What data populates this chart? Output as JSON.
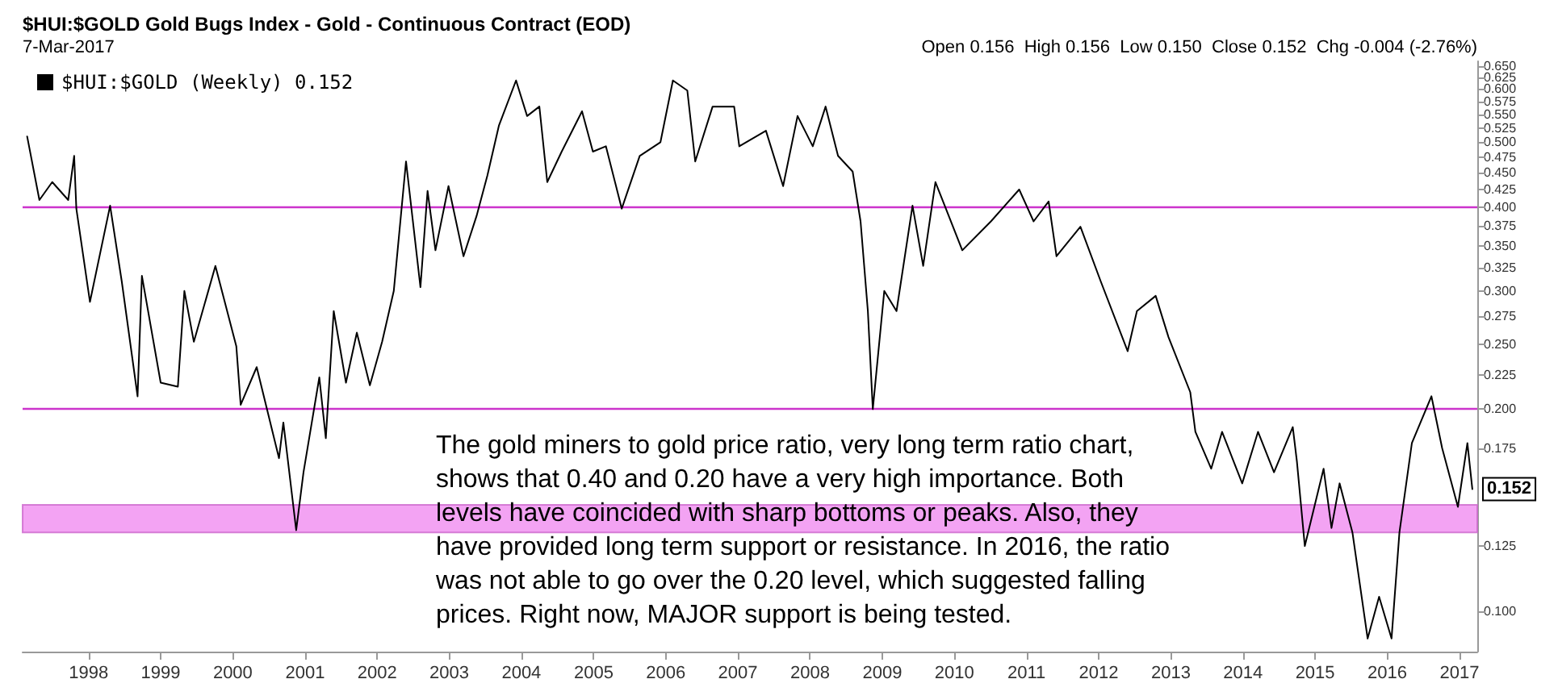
{
  "chart_data": {
    "type": "line",
    "title": "$HUI:$GOLD Gold Bugs Index - Gold - Continuous Contract (EOD)",
    "subtitle": "7-Mar-2017",
    "annotations": [
      "Open 0.156  High 0.156  Low 0.150  Close 0.152  Chg -0.004 (-2.76%)",
      "The gold miners to gold price ratio, very long term ratio chart, shows that 0.40 and 0.20 have a very high importance. Both levels have coincided with sharp bottoms or peaks. Also, they have provided long term support or resistance. In 2016, the ratio was not able to go over the 0.20 level, which suggested falling prices. Right now, MAJOR support is being tested.",
      {
        "text": "0.152",
        "x": "2017-03-07",
        "y": 0.152
      }
    ],
    "x": [
      "1997-02-24",
      "1997-04-27",
      "1997-07-01",
      "1997-09-20",
      "1997-10-20",
      "1997-10-31",
      "1998-01-08",
      "1998-04-20",
      "1998-06-18",
      "1998-09-06",
      "1998-09-28",
      "1999-01-01",
      "1999-03-29",
      "1999-05-01",
      "1999-06-18",
      "1999-10-05",
      "2000-01-19",
      "2000-02-10",
      "2000-05-01",
      "2000-08-22",
      "2000-09-13",
      "2000-11-17",
      "2000-12-24",
      "2001-03-14",
      "2001-04-16",
      "2001-05-26",
      "2001-07-27",
      "2001-09-20",
      "2001-11-25",
      "2002-01-26",
      "2002-03-26",
      "2002-05-27",
      "2002-08-08",
      "2002-09-13",
      "2002-10-23",
      "2002-12-28",
      "2003-03-14",
      "2003-05-19",
      "2003-07-13",
      "2003-09-09",
      "2003-12-05",
      "2004-01-30",
      "2004-04-01",
      "2004-05-11",
      "2004-07-23",
      "2004-11-03",
      "2004-12-28",
      "2005-03-04",
      "2005-05-23",
      "2005-08-22",
      "2005-12-05",
      "2006-02-06",
      "2006-04-20",
      "2006-05-30",
      "2006-08-26",
      "2006-12-13",
      "2007-01-08",
      "2007-05-23",
      "2007-08-18",
      "2007-10-30",
      "2008-01-15",
      "2008-03-20",
      "2008-05-22",
      "2008-08-04",
      "2008-09-13",
      "2008-10-20",
      "2008-11-14",
      "2009-01-11",
      "2009-03-14",
      "2009-06-03",
      "2009-07-27",
      "2009-09-27",
      "2010-02-10",
      "2010-07-05",
      "2010-11-25",
      "2011-02-06",
      "2011-04-23",
      "2011-06-02",
      "2011-10-01",
      "2012-01-12",
      "2012-05-27",
      "2012-07-13",
      "2012-10-16",
      "2012-12-20",
      "2013-04-09",
      "2013-05-05",
      "2013-07-24",
      "2013-09-17",
      "2013-12-28",
      "2014-03-18",
      "2014-06-07",
      "2014-09-10",
      "2014-10-01",
      "2014-11-10",
      "2015-02-13",
      "2015-03-25",
      "2015-05-05",
      "2015-07-09",
      "2015-09-24",
      "2015-11-21",
      "2016-01-23",
      "2016-03-03",
      "2016-05-05",
      "2016-08-12",
      "2016-10-05",
      "2016-12-24",
      "2017-02-10",
      "2017-03-07"
    ],
    "series": [
      {
        "name": "$HUI:$GOLD (Weekly) 0.152",
        "color": "#000000",
        "values": [
          0.51,
          0.41,
          0.436,
          0.41,
          0.477,
          0.398,
          0.289,
          0.402,
          0.31,
          0.209,
          0.316,
          0.219,
          0.216,
          0.3,
          0.252,
          0.327,
          0.248,
          0.203,
          0.231,
          0.169,
          0.191,
          0.132,
          0.161,
          0.223,
          0.181,
          0.28,
          0.219,
          0.26,
          0.217,
          0.252,
          0.3,
          0.468,
          0.304,
          0.423,
          0.345,
          0.43,
          0.338,
          0.388,
          0.446,
          0.529,
          0.618,
          0.547,
          0.565,
          0.436,
          0.484,
          0.556,
          0.484,
          0.493,
          0.398,
          0.477,
          0.5,
          0.618,
          0.597,
          0.468,
          0.565,
          0.565,
          0.493,
          0.52,
          0.43,
          0.547,
          0.493,
          0.565,
          0.477,
          0.452,
          0.381,
          0.28,
          0.2,
          0.3,
          0.28,
          0.402,
          0.327,
          0.436,
          0.345,
          0.381,
          0.425,
          0.381,
          0.408,
          0.338,
          0.374,
          0.31,
          0.244,
          0.28,
          0.295,
          0.256,
          0.212,
          0.185,
          0.163,
          0.185,
          0.155,
          0.185,
          0.161,
          0.188,
          0.167,
          0.125,
          0.163,
          0.133,
          0.155,
          0.131,
          0.091,
          0.105,
          0.091,
          0.131,
          0.178,
          0.209,
          0.175,
          0.143,
          0.178,
          0.152
        ]
      }
    ],
    "xlim": [
      "1997-02-01",
      "2017-04-01"
    ],
    "xticks": [
      "1998",
      "1999",
      "2000",
      "2001",
      "2002",
      "2003",
      "2004",
      "2005",
      "2006",
      "2007",
      "2008",
      "2009",
      "2010",
      "2011",
      "2012",
      "2013",
      "2014",
      "2015",
      "2016",
      "2017"
    ],
    "ylim": [
      0.087,
      0.66
    ],
    "log": true,
    "yticks": [
      {
        "value": 0.1,
        "label": "0.100"
      },
      {
        "value": 0.125,
        "label": "0.125"
      },
      {
        "value": 0.175,
        "label": "0.175"
      },
      {
        "value": 0.2,
        "label": "0.200"
      },
      {
        "value": 0.225,
        "label": "0.225"
      },
      {
        "value": 0.25,
        "label": "0.250"
      },
      {
        "value": 0.275,
        "label": "0.275"
      },
      {
        "value": 0.3,
        "label": "0.300"
      },
      {
        "value": 0.325,
        "label": "0.325"
      },
      {
        "value": 0.35,
        "label": "0.350"
      },
      {
        "value": 0.375,
        "label": "0.375"
      },
      {
        "value": 0.4,
        "label": "0.400"
      },
      {
        "value": 0.425,
        "label": "0.425"
      },
      {
        "value": 0.45,
        "label": "0.450"
      },
      {
        "value": 0.475,
        "label": "0.475"
      },
      {
        "value": 0.5,
        "label": "0.500"
      },
      {
        "value": 0.525,
        "label": "0.525"
      },
      {
        "value": 0.55,
        "label": "0.550"
      },
      {
        "value": 0.575,
        "label": "0.575"
      },
      {
        "value": 0.6,
        "label": "0.600"
      },
      {
        "value": 0.625,
        "label": "0.625"
      },
      {
        "value": 0.65,
        "label": "0.650"
      }
    ],
    "ref_lines": [
      {
        "axis": "y",
        "value": 0.4,
        "color": "#cc33cc"
      },
      {
        "axis": "y",
        "value": 0.2,
        "color": "#cc33cc"
      }
    ],
    "bands": [
      {
        "axis": "y",
        "from": 0.131,
        "to": 0.144,
        "color": "#f08cf0"
      }
    ],
    "grid": false,
    "legend": "top left",
    "marker": "none",
    "line_style": "solid"
  }
}
